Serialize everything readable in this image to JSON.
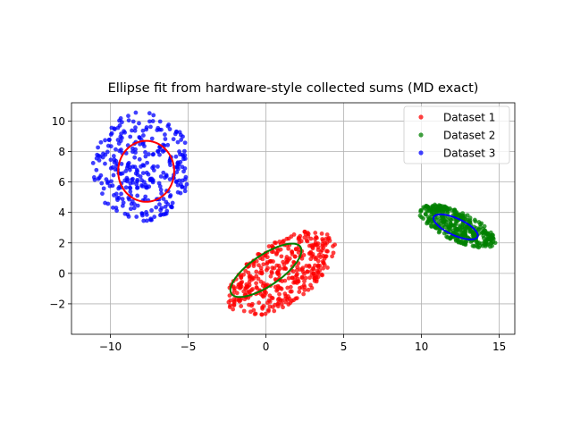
{
  "chart_data": {
    "type": "scatter",
    "title": "Ellipse fit from hardware-style collected sums (MD exact)",
    "xlim": [
      -12.5,
      16.0
    ],
    "ylim": [
      -4.0,
      11.2
    ],
    "xticks": [
      -10,
      -5,
      0,
      5,
      10,
      15
    ],
    "yticks": [
      -2,
      0,
      2,
      4,
      6,
      8,
      10
    ],
    "xtick_labels": [
      "−10",
      "−5",
      "0",
      "5",
      "10",
      "15"
    ],
    "ytick_labels": [
      "−2",
      "0",
      "2",
      "4",
      "6",
      "8",
      "10"
    ],
    "grid": true,
    "legend_position": "top-right",
    "series": [
      {
        "name": "Dataset 1",
        "color": "#ff0000",
        "cluster": {
          "cx": 1.0,
          "cy": 0.0,
          "rx": 4.0,
          "ry": 2.0,
          "angle_deg": 35,
          "count": 420
        },
        "ellipse": {
          "cx": 0.0,
          "cy": 0.2,
          "rx": 2.7,
          "ry": 1.0,
          "angle_deg": 35,
          "color": "#008000"
        }
      },
      {
        "name": "Dataset 2",
        "color": "#008000",
        "cluster": {
          "cx": 12.3,
          "cy": 3.1,
          "rx": 2.7,
          "ry": 0.95,
          "angle_deg": -25,
          "count": 380
        },
        "ellipse": {
          "cx": 12.2,
          "cy": 3.05,
          "rx": 1.55,
          "ry": 0.55,
          "angle_deg": -25,
          "color": "#0000ff"
        }
      },
      {
        "name": "Dataset 3",
        "color": "#0000ff",
        "cluster": {
          "cx": -8.0,
          "cy": 7.0,
          "rx": 3.2,
          "ry": 3.6,
          "angle_deg": 0,
          "count": 330
        },
        "ellipse": {
          "cx": -7.7,
          "cy": 6.7,
          "rx": 1.8,
          "ry": 2.0,
          "angle_deg": 0,
          "color": "#ff0000"
        }
      }
    ]
  }
}
